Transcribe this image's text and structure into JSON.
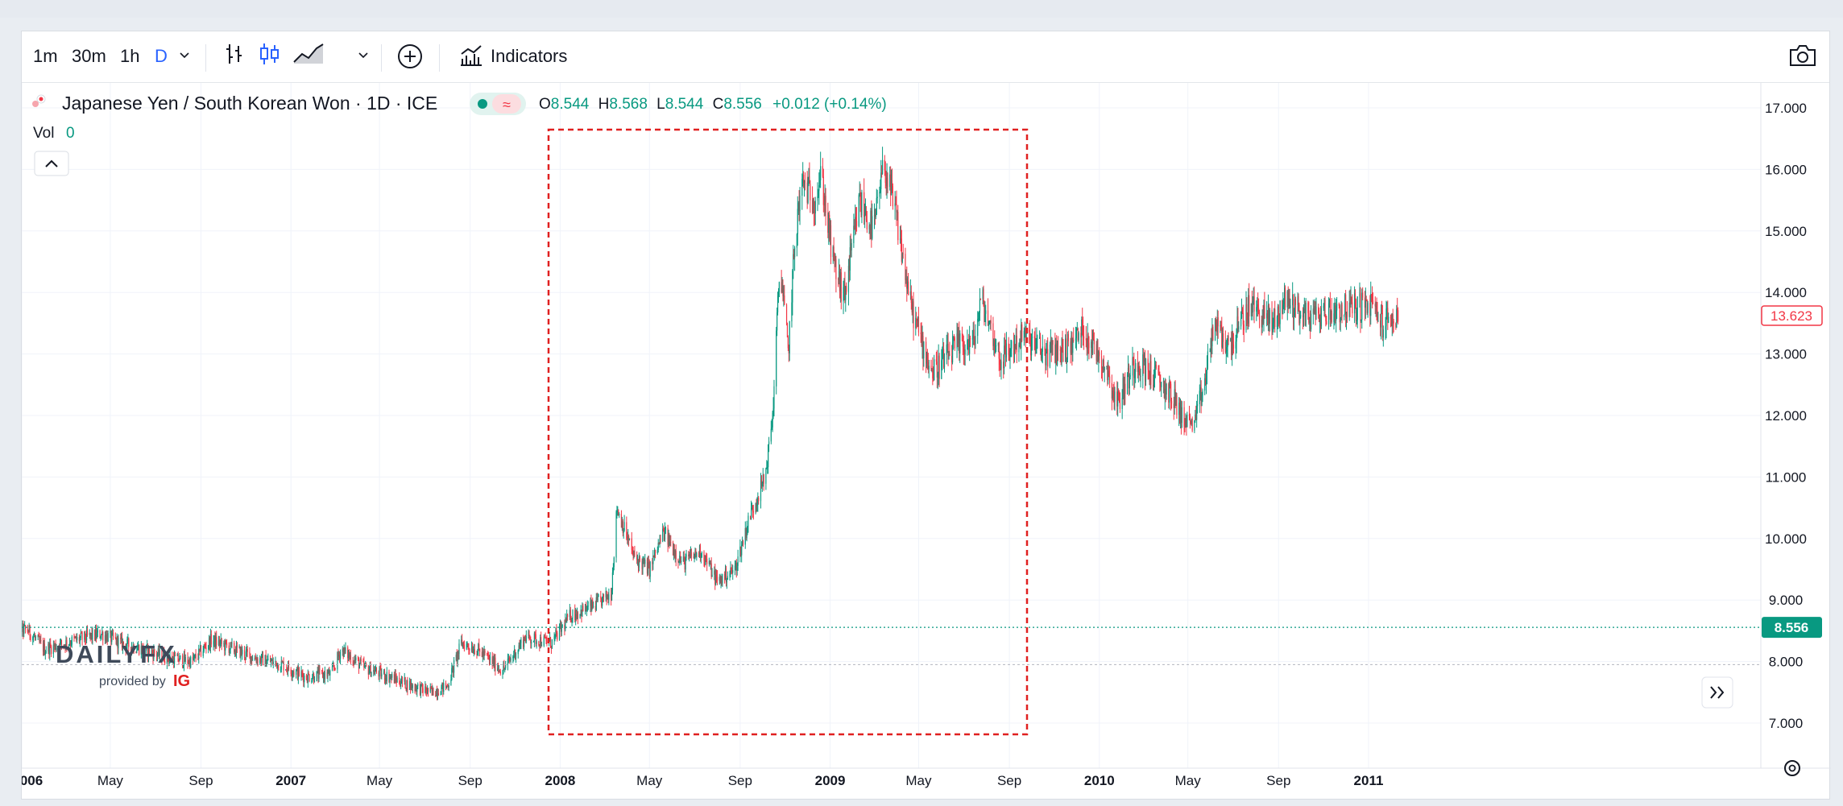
{
  "toolbar": {
    "intervals": [
      "1m",
      "30m",
      "1h",
      "D"
    ],
    "active_interval": "D",
    "indicators_label": "Indicators"
  },
  "legend": {
    "symbol": "Japanese Yen / South Korean Won · 1D · ICE",
    "open_label": "O",
    "open": "8.544",
    "high_label": "H",
    "high": "8.568",
    "low_label": "L",
    "low": "8.544",
    "close_label": "C",
    "close": "8.556",
    "change": "+0.012 (+0.14%)",
    "vol_label": "Vol",
    "vol_value": "0"
  },
  "badges": {
    "last_price": "13.623",
    "crosshair_price": "8.556"
  },
  "watermark": {
    "brand": "DAILYFX",
    "provided_by": "provided by",
    "ig": "IG"
  },
  "colors": {
    "up": "#089981",
    "down": "#f23645",
    "accent": "#2962ff",
    "highlight_box": "#e02020"
  },
  "chart_data": {
    "type": "candlestick",
    "title": "Japanese Yen / South Korean Won · 1D · ICE",
    "y_ticks": [
      7,
      8,
      9,
      10,
      11,
      12,
      13,
      14,
      15,
      16,
      17
    ],
    "y_tick_labels": [
      "7.000",
      "8.000",
      "9.000",
      "10.000",
      "11.000",
      "12.000",
      "13.000",
      "14.000",
      "15.000",
      "16.000",
      "17.000"
    ],
    "ylim": [
      6.5,
      17.3
    ],
    "x_ticks": [
      {
        "date": "2006-01-01",
        "label": "006",
        "bold": true
      },
      {
        "date": "2006-05-01",
        "label": "May",
        "bold": false
      },
      {
        "date": "2006-09-01",
        "label": "Sep",
        "bold": false
      },
      {
        "date": "2007-01-01",
        "label": "2007",
        "bold": true
      },
      {
        "date": "2007-05-01",
        "label": "May",
        "bold": false
      },
      {
        "date": "2007-09-01",
        "label": "Sep",
        "bold": false
      },
      {
        "date": "2008-01-01",
        "label": "2008",
        "bold": true
      },
      {
        "date": "2008-05-01",
        "label": "May",
        "bold": false
      },
      {
        "date": "2008-09-01",
        "label": "Sep",
        "bold": false
      },
      {
        "date": "2009-01-01",
        "label": "2009",
        "bold": true
      },
      {
        "date": "2009-05-01",
        "label": "May",
        "bold": false
      },
      {
        "date": "2009-09-01",
        "label": "Sep",
        "bold": false
      },
      {
        "date": "2010-01-01",
        "label": "2010",
        "bold": true
      },
      {
        "date": "2010-05-01",
        "label": "May",
        "bold": false
      },
      {
        "date": "2010-09-01",
        "label": "Sep",
        "bold": false
      },
      {
        "date": "2011-01-01",
        "label": "2011",
        "bold": true
      }
    ],
    "price_anchors": [
      [
        "2005-12-15",
        8.55
      ],
      [
        "2006-01-10",
        8.5
      ],
      [
        "2006-02-01",
        8.2
      ],
      [
        "2006-03-15",
        8.35
      ],
      [
        "2006-04-20",
        8.45
      ],
      [
        "2006-05-15",
        8.3
      ],
      [
        "2006-06-15",
        8.2
      ],
      [
        "2006-07-20",
        8.05
      ],
      [
        "2006-08-20",
        8.0
      ],
      [
        "2006-09-15",
        8.35
      ],
      [
        "2006-10-15",
        8.2
      ],
      [
        "2006-11-15",
        8.05
      ],
      [
        "2006-12-20",
        7.95
      ],
      [
        "2007-01-20",
        7.75
      ],
      [
        "2007-02-25",
        7.8
      ],
      [
        "2007-03-10",
        8.2
      ],
      [
        "2007-04-10",
        7.9
      ],
      [
        "2007-05-15",
        7.75
      ],
      [
        "2007-06-15",
        7.6
      ],
      [
        "2007-07-10",
        7.5
      ],
      [
        "2007-08-01",
        7.6
      ],
      [
        "2007-08-20",
        8.3
      ],
      [
        "2007-09-10",
        8.2
      ],
      [
        "2007-10-15",
        7.85
      ],
      [
        "2007-11-15",
        8.4
      ],
      [
        "2007-12-20",
        8.3
      ],
      [
        "2008-01-15",
        8.75
      ],
      [
        "2008-02-15",
        8.9
      ],
      [
        "2008-03-10",
        9.1
      ],
      [
        "2008-03-18",
        10.5
      ],
      [
        "2008-04-10",
        9.7
      ],
      [
        "2008-05-01",
        9.5
      ],
      [
        "2008-05-20",
        10.1
      ],
      [
        "2008-06-15",
        9.6
      ],
      [
        "2008-07-10",
        9.8
      ],
      [
        "2008-08-01",
        9.3
      ],
      [
        "2008-08-25",
        9.5
      ],
      [
        "2008-09-15",
        10.4
      ],
      [
        "2008-10-05",
        11.0
      ],
      [
        "2008-10-15",
        12.0
      ],
      [
        "2008-10-25",
        14.5
      ],
      [
        "2008-11-05",
        13.0
      ],
      [
        "2008-11-15",
        15.0
      ],
      [
        "2008-11-25",
        15.8
      ],
      [
        "2008-12-10",
        15.5
      ],
      [
        "2008-12-20",
        15.9
      ],
      [
        "2009-01-05",
        14.5
      ],
      [
        "2009-01-20",
        13.9
      ],
      [
        "2009-02-10",
        15.5
      ],
      [
        "2009-03-01",
        15.0
      ],
      [
        "2009-03-15",
        16.1
      ],
      [
        "2009-04-01",
        15.2
      ],
      [
        "2009-04-20",
        13.8
      ],
      [
        "2009-05-05",
        13.2
      ],
      [
        "2009-05-20",
        12.7
      ],
      [
        "2009-06-20",
        13.1
      ],
      [
        "2009-07-15",
        13.2
      ],
      [
        "2009-07-25",
        13.9
      ],
      [
        "2009-08-20",
        12.9
      ],
      [
        "2009-09-20",
        13.3
      ],
      [
        "2009-10-20",
        13.0
      ],
      [
        "2009-11-20",
        13.1
      ],
      [
        "2009-12-10",
        13.4
      ],
      [
        "2010-01-10",
        12.8
      ],
      [
        "2010-01-25",
        12.2
      ],
      [
        "2010-02-20",
        12.9
      ],
      [
        "2010-03-20",
        12.6
      ],
      [
        "2010-04-10",
        12.3
      ],
      [
        "2010-04-25",
        11.95
      ],
      [
        "2010-05-10",
        11.85
      ],
      [
        "2010-05-25",
        12.6
      ],
      [
        "2010-06-05",
        13.5
      ],
      [
        "2010-06-25",
        13.1
      ],
      [
        "2010-07-25",
        13.8
      ],
      [
        "2010-08-25",
        13.5
      ],
      [
        "2010-09-10",
        13.9
      ],
      [
        "2010-10-10",
        13.6
      ],
      [
        "2010-11-10",
        13.7
      ],
      [
        "2010-12-10",
        13.75
      ],
      [
        "2011-01-05",
        13.8
      ],
      [
        "2011-01-20",
        13.5
      ],
      [
        "2011-02-10",
        13.62
      ]
    ]
  }
}
